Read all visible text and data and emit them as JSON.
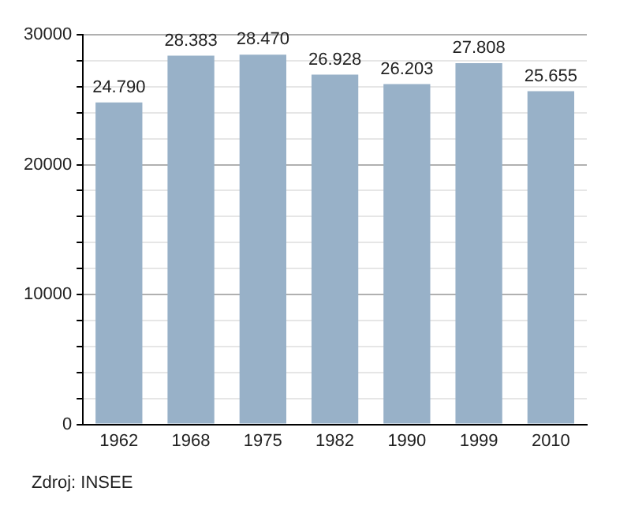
{
  "chart_data": {
    "type": "bar",
    "categories": [
      "1962",
      "1968",
      "1975",
      "1982",
      "1990",
      "1999",
      "2010"
    ],
    "values": [
      24790,
      28383,
      28470,
      26928,
      26203,
      27808,
      25655
    ],
    "value_labels": [
      "24.790",
      "28.383",
      "28.470",
      "26.928",
      "26.203",
      "27.808",
      "25.655"
    ],
    "color": "#98b1c8",
    "ylim": [
      0,
      30000
    ],
    "yticks": [
      0,
      {
        "value": 2000,
        "label": null
      },
      {
        "value": 4000,
        "label": null
      },
      {
        "value": 6000,
        "label": null
      },
      {
        "value": 8000,
        "label": null
      },
      10000,
      {
        "value": 12000,
        "label": null
      },
      {
        "value": 14000,
        "label": null
      },
      {
        "value": 16000,
        "label": null
      },
      {
        "value": 18000,
        "label": null
      },
      20000,
      {
        "value": 22000,
        "label": null
      },
      {
        "value": 24000,
        "label": null
      },
      {
        "value": 26000,
        "label": null
      },
      {
        "value": 28000,
        "label": null
      },
      30000
    ],
    "grid": "y",
    "annotations": [
      "Zdroj: INSEE"
    ]
  }
}
